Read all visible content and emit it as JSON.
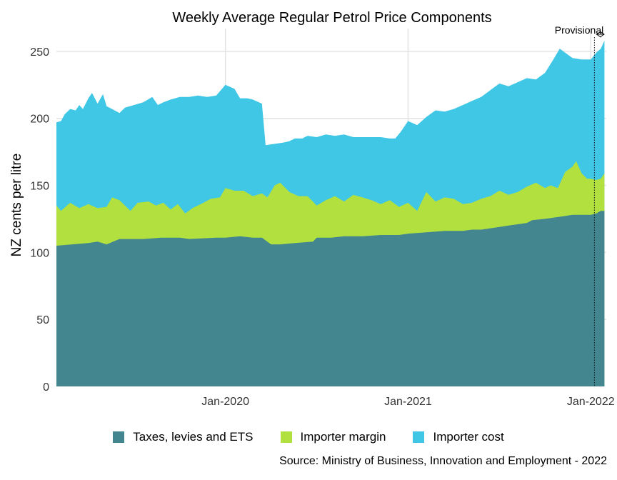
{
  "chart_data": {
    "type": "area",
    "stacked": true,
    "title": "Weekly Average Regular Petrol Price Components",
    "xlabel": "",
    "ylabel": "NZ cents per litre",
    "ylim": [
      0,
      267
    ],
    "yticks": [
      0,
      50,
      100,
      150,
      200,
      250
    ],
    "xlim": [
      2019.075,
      2022.085
    ],
    "xticks": [
      {
        "value": 2020.0,
        "label": "Jan-2020"
      },
      {
        "value": 2021.0,
        "label": "Jan-2021"
      },
      {
        "value": 2022.0,
        "label": "Jan-2022"
      }
    ],
    "grid": true,
    "legend_position": "bottom",
    "annotation": {
      "text": "Provisional",
      "x_start": 2022.02,
      "x_end": 2022.085
    },
    "colors": {
      "taxes": "#43868f",
      "margin": "#b2e03e",
      "cost": "#40c7e5",
      "grid": "#e3e3e3",
      "axis_text": "#333333"
    },
    "series": [
      {
        "name": "Taxes, levies and ETS",
        "key": "taxes",
        "points": [
          [
            2019.075,
            105
          ],
          [
            2019.25,
            107
          ],
          [
            2019.3,
            108
          ],
          [
            2019.35,
            106
          ],
          [
            2019.42,
            110
          ],
          [
            2019.55,
            110
          ],
          [
            2019.65,
            111
          ],
          [
            2019.75,
            111
          ],
          [
            2019.8,
            110
          ],
          [
            2019.95,
            111
          ],
          [
            2020.0,
            111
          ],
          [
            2020.08,
            112
          ],
          [
            2020.15,
            111
          ],
          [
            2020.2,
            111
          ],
          [
            2020.25,
            106
          ],
          [
            2020.3,
            106
          ],
          [
            2020.38,
            107
          ],
          [
            2020.48,
            108
          ],
          [
            2020.5,
            111
          ],
          [
            2020.58,
            111
          ],
          [
            2020.65,
            112
          ],
          [
            2020.75,
            112
          ],
          [
            2020.85,
            113
          ],
          [
            2020.95,
            113
          ],
          [
            2021.0,
            114
          ],
          [
            2021.1,
            115
          ],
          [
            2021.2,
            116
          ],
          [
            2021.3,
            116
          ],
          [
            2021.35,
            117
          ],
          [
            2021.4,
            117
          ],
          [
            2021.45,
            118
          ],
          [
            2021.5,
            119
          ],
          [
            2021.55,
            120
          ],
          [
            2021.6,
            121
          ],
          [
            2021.65,
            122
          ],
          [
            2021.68,
            124
          ],
          [
            2021.75,
            125
          ],
          [
            2021.85,
            127
          ],
          [
            2021.9,
            128
          ],
          [
            2021.95,
            128
          ],
          [
            2022.0,
            128
          ],
          [
            2022.03,
            129
          ],
          [
            2022.055,
            131
          ],
          [
            2022.075,
            131
          ]
        ]
      },
      {
        "name": "Importer margin",
        "key": "margin",
        "points": [
          [
            2019.075,
            135
          ],
          [
            2019.1,
            131
          ],
          [
            2019.15,
            137
          ],
          [
            2019.2,
            133
          ],
          [
            2019.25,
            136
          ],
          [
            2019.3,
            133
          ],
          [
            2019.35,
            134
          ],
          [
            2019.38,
            141
          ],
          [
            2019.42,
            139
          ],
          [
            2019.48,
            131
          ],
          [
            2019.52,
            137
          ],
          [
            2019.58,
            138
          ],
          [
            2019.62,
            135
          ],
          [
            2019.66,
            137
          ],
          [
            2019.7,
            132
          ],
          [
            2019.74,
            136
          ],
          [
            2019.78,
            129
          ],
          [
            2019.82,
            133
          ],
          [
            2019.88,
            137
          ],
          [
            2019.92,
            140
          ],
          [
            2019.97,
            141
          ],
          [
            2020.0,
            148
          ],
          [
            2020.05,
            146
          ],
          [
            2020.1,
            146
          ],
          [
            2020.15,
            142
          ],
          [
            2020.2,
            144
          ],
          [
            2020.23,
            141
          ],
          [
            2020.27,
            150
          ],
          [
            2020.3,
            152
          ],
          [
            2020.35,
            145
          ],
          [
            2020.4,
            142
          ],
          [
            2020.45,
            142
          ],
          [
            2020.5,
            135
          ],
          [
            2020.55,
            139
          ],
          [
            2020.6,
            142
          ],
          [
            2020.65,
            138
          ],
          [
            2020.7,
            143
          ],
          [
            2020.75,
            141
          ],
          [
            2020.8,
            139
          ],
          [
            2020.85,
            136
          ],
          [
            2020.9,
            139
          ],
          [
            2020.95,
            134
          ],
          [
            2021.0,
            137
          ],
          [
            2021.05,
            131
          ],
          [
            2021.1,
            145
          ],
          [
            2021.15,
            138
          ],
          [
            2021.2,
            141
          ],
          [
            2021.25,
            140
          ],
          [
            2021.3,
            136
          ],
          [
            2021.35,
            137
          ],
          [
            2021.4,
            140
          ],
          [
            2021.45,
            142
          ],
          [
            2021.5,
            146
          ],
          [
            2021.55,
            143
          ],
          [
            2021.6,
            145
          ],
          [
            2021.65,
            149
          ],
          [
            2021.7,
            152
          ],
          [
            2021.75,
            148
          ],
          [
            2021.78,
            150
          ],
          [
            2021.82,
            148
          ],
          [
            2021.86,
            160
          ],
          [
            2021.9,
            164
          ],
          [
            2021.92,
            168
          ],
          [
            2021.95,
            159
          ],
          [
            2021.98,
            155
          ],
          [
            2022.0,
            155
          ],
          [
            2022.03,
            154
          ],
          [
            2022.055,
            155
          ],
          [
            2022.075,
            159
          ]
        ]
      },
      {
        "name": "Importer cost",
        "key": "cost",
        "points": [
          [
            2019.075,
            197
          ],
          [
            2019.1,
            198
          ],
          [
            2019.12,
            203
          ],
          [
            2019.15,
            207
          ],
          [
            2019.18,
            206
          ],
          [
            2019.2,
            210
          ],
          [
            2019.22,
            207
          ],
          [
            2019.25,
            215
          ],
          [
            2019.27,
            219
          ],
          [
            2019.3,
            211
          ],
          [
            2019.33,
            218
          ],
          [
            2019.35,
            209
          ],
          [
            2019.38,
            207
          ],
          [
            2019.42,
            204
          ],
          [
            2019.45,
            208
          ],
          [
            2019.5,
            210
          ],
          [
            2019.55,
            212
          ],
          [
            2019.6,
            216
          ],
          [
            2019.63,
            210
          ],
          [
            2019.66,
            212
          ],
          [
            2019.7,
            214
          ],
          [
            2019.75,
            216
          ],
          [
            2019.8,
            216
          ],
          [
            2019.85,
            217
          ],
          [
            2019.9,
            216
          ],
          [
            2019.95,
            217
          ],
          [
            2020.0,
            225
          ],
          [
            2020.05,
            222
          ],
          [
            2020.08,
            215
          ],
          [
            2020.12,
            215
          ],
          [
            2020.15,
            214
          ],
          [
            2020.2,
            211
          ],
          [
            2020.22,
            180
          ],
          [
            2020.27,
            181
          ],
          [
            2020.32,
            182
          ],
          [
            2020.35,
            183
          ],
          [
            2020.38,
            185
          ],
          [
            2020.42,
            185
          ],
          [
            2020.45,
            187
          ],
          [
            2020.5,
            186
          ],
          [
            2020.55,
            188
          ],
          [
            2020.6,
            187
          ],
          [
            2020.65,
            188
          ],
          [
            2020.7,
            186
          ],
          [
            2020.75,
            186
          ],
          [
            2020.8,
            186
          ],
          [
            2020.85,
            186
          ],
          [
            2020.9,
            185
          ],
          [
            2020.93,
            185
          ],
          [
            2020.96,
            190
          ],
          [
            2021.0,
            198
          ],
          [
            2021.05,
            195
          ],
          [
            2021.1,
            201
          ],
          [
            2021.15,
            206
          ],
          [
            2021.2,
            205
          ],
          [
            2021.25,
            207
          ],
          [
            2021.3,
            210
          ],
          [
            2021.35,
            213
          ],
          [
            2021.4,
            216
          ],
          [
            2021.45,
            221
          ],
          [
            2021.5,
            226
          ],
          [
            2021.55,
            224
          ],
          [
            2021.6,
            227
          ],
          [
            2021.65,
            230
          ],
          [
            2021.7,
            229
          ],
          [
            2021.75,
            234
          ],
          [
            2021.8,
            245
          ],
          [
            2021.83,
            252
          ],
          [
            2021.86,
            249
          ],
          [
            2021.9,
            245
          ],
          [
            2021.95,
            244
          ],
          [
            2022.0,
            244
          ],
          [
            2022.03,
            249
          ],
          [
            2022.055,
            252
          ],
          [
            2022.075,
            258
          ]
        ]
      }
    ]
  },
  "legend": {
    "items": [
      {
        "label": "Taxes, levies and ETS"
      },
      {
        "label": "Importer margin"
      },
      {
        "label": "Importer cost"
      }
    ]
  },
  "source": "Source: Ministry of Business, Innovation and Employment - 2022"
}
